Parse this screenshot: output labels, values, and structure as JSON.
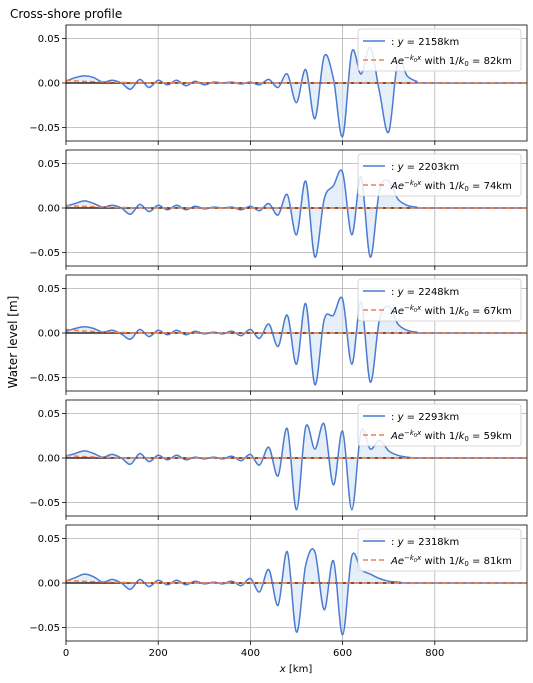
{
  "figure": {
    "title": "Cross-shore profile",
    "ylabel": "Water level [m]",
    "xlabel_var": "x",
    "xlabel_unit": " [km]"
  },
  "colors": {
    "signal": "#4a7bd0",
    "fill": "#d6e4f5",
    "decay": "#ee8050",
    "zero_line": "#000000",
    "grid": "#b0b0b0"
  },
  "chart_data": [
    {
      "type": "line",
      "y_km": "2158",
      "inv_k0_km": "82",
      "legend_signal": ": y = 2158km",
      "legend_decay": "Ae^{-k0 x} with 1/k0 = 82km",
      "xlim": [
        0,
        1000
      ],
      "ylim": [
        -0.065,
        0.065
      ],
      "xticks": [
        0,
        200,
        400,
        600,
        800
      ],
      "yticks": [
        -0.05,
        0.0,
        0.05
      ],
      "ytick_labels": [
        "−0.05",
        "0.00",
        "0.05"
      ],
      "grid": true,
      "legend_loc": "upper right",
      "decay_amplitude": 0.003,
      "x": [
        0,
        20,
        40,
        60,
        80,
        100,
        120,
        140,
        160,
        180,
        200,
        220,
        240,
        260,
        280,
        300,
        320,
        340,
        360,
        380,
        400,
        420,
        440,
        460,
        480,
        500,
        520,
        540,
        560,
        580,
        600,
        620,
        640,
        660,
        680,
        700,
        720,
        740,
        760,
        780
      ],
      "y": [
        0.002,
        0.006,
        0.008,
        0.006,
        0.001,
        0.003,
        0.0,
        -0.007,
        0.004,
        -0.005,
        0.003,
        -0.002,
        0.003,
        -0.003,
        0.002,
        -0.002,
        0.001,
        0.0,
        0.001,
        -0.001,
        0.001,
        -0.002,
        0.004,
        -0.005,
        0.01,
        -0.022,
        0.015,
        -0.04,
        0.03,
        0.005,
        -0.06,
        0.035,
        0.01,
        0.04,
        -0.01,
        -0.055,
        0.025,
        0.008,
        0.002,
        0.0
      ]
    },
    {
      "type": "line",
      "y_km": "2203",
      "inv_k0_km": "74",
      "legend_signal": ": y = 2203km",
      "legend_decay": "Ae^{-k0 x} with 1/k0 = 74km",
      "xlim": [
        0,
        1000
      ],
      "ylim": [
        -0.065,
        0.065
      ],
      "xticks": [
        0,
        200,
        400,
        600,
        800
      ],
      "yticks": [
        -0.05,
        0.0,
        0.05
      ],
      "ytick_labels": [
        "−0.05",
        "0.00",
        "0.05"
      ],
      "grid": true,
      "legend_loc": "upper right",
      "decay_amplitude": 0.003,
      "x": [
        0,
        20,
        40,
        60,
        80,
        100,
        120,
        140,
        160,
        180,
        200,
        220,
        240,
        260,
        280,
        300,
        320,
        340,
        360,
        380,
        400,
        420,
        440,
        460,
        480,
        500,
        520,
        540,
        560,
        580,
        600,
        620,
        640,
        660,
        680,
        700,
        720,
        740,
        760,
        780
      ],
      "y": [
        0.002,
        0.005,
        0.008,
        0.005,
        0.001,
        0.003,
        0.0,
        -0.007,
        0.004,
        -0.004,
        0.003,
        -0.002,
        0.003,
        -0.002,
        0.002,
        -0.001,
        0.001,
        0.0,
        0.001,
        -0.002,
        0.002,
        -0.003,
        0.005,
        -0.008,
        0.015,
        -0.03,
        0.03,
        -0.055,
        0.01,
        0.025,
        0.04,
        -0.03,
        0.035,
        -0.055,
        0.02,
        0.03,
        0.01,
        0.003,
        0.001,
        0.0
      ]
    },
    {
      "type": "line",
      "y_km": "2248",
      "inv_k0_km": "67",
      "legend_signal": ": y = 2248km",
      "legend_decay": "Ae^{-k0 x} with 1/k0 = 67km",
      "xlim": [
        0,
        1000
      ],
      "ylim": [
        -0.065,
        0.065
      ],
      "xticks": [
        0,
        200,
        400,
        600,
        800
      ],
      "yticks": [
        -0.05,
        0.0,
        0.05
      ],
      "ytick_labels": [
        "−0.05",
        "0.00",
        "0.05"
      ],
      "grid": true,
      "legend_loc": "upper right",
      "decay_amplitude": 0.004,
      "x": [
        0,
        20,
        40,
        60,
        80,
        100,
        120,
        140,
        160,
        180,
        200,
        220,
        240,
        260,
        280,
        300,
        320,
        340,
        360,
        380,
        400,
        420,
        440,
        460,
        480,
        500,
        520,
        540,
        560,
        580,
        600,
        620,
        640,
        660,
        680,
        700,
        720,
        740,
        760,
        780
      ],
      "y": [
        0.002,
        0.005,
        0.007,
        0.005,
        0.001,
        0.003,
        -0.001,
        -0.007,
        0.004,
        -0.004,
        0.003,
        -0.002,
        0.003,
        -0.002,
        0.002,
        -0.001,
        0.001,
        -0.001,
        0.002,
        -0.003,
        0.004,
        -0.006,
        0.01,
        -0.015,
        0.02,
        -0.035,
        0.033,
        -0.058,
        0.015,
        0.02,
        0.038,
        -0.035,
        0.035,
        -0.055,
        0.015,
        0.03,
        0.01,
        0.003,
        0.001,
        0.0
      ]
    },
    {
      "type": "line",
      "y_km": "2293",
      "inv_k0_km": "59",
      "legend_signal": ": y = 2293km",
      "legend_decay": "Ae^{-k0 x} with 1/k0 = 59km",
      "xlim": [
        0,
        1000
      ],
      "ylim": [
        -0.065,
        0.065
      ],
      "xticks": [
        0,
        200,
        400,
        600,
        800
      ],
      "yticks": [
        -0.05,
        0.0,
        0.05
      ],
      "ytick_labels": [
        "−0.05",
        "0.00",
        "0.05"
      ],
      "grid": true,
      "legend_loc": "upper right",
      "decay_amplitude": 0.003,
      "x": [
        0,
        20,
        40,
        60,
        80,
        100,
        120,
        140,
        160,
        180,
        200,
        220,
        240,
        260,
        280,
        300,
        320,
        340,
        360,
        380,
        400,
        420,
        440,
        460,
        480,
        500,
        520,
        540,
        560,
        580,
        600,
        620,
        640,
        660,
        680,
        700,
        720,
        740,
        760,
        780
      ],
      "y": [
        0.002,
        0.005,
        0.008,
        0.005,
        0.001,
        0.004,
        0.0,
        -0.007,
        0.005,
        -0.004,
        0.003,
        -0.002,
        0.003,
        -0.002,
        0.001,
        -0.001,
        0.001,
        -0.001,
        0.002,
        -0.003,
        0.004,
        -0.008,
        0.012,
        -0.02,
        0.033,
        -0.058,
        0.035,
        0.01,
        0.038,
        -0.03,
        0.03,
        -0.058,
        0.03,
        0.01,
        0.02,
        0.008,
        0.003,
        0.001,
        0.0,
        0.0
      ]
    },
    {
      "type": "line",
      "y_km": "2318",
      "inv_k0_km": "81",
      "legend_signal": ": y = 2318km",
      "legend_decay": "Ae^{-k0 x} with 1/k0 = 81km",
      "xlim": [
        0,
        1000
      ],
      "ylim": [
        -0.065,
        0.065
      ],
      "xticks": [
        0,
        200,
        400,
        600,
        800
      ],
      "yticks": [
        -0.05,
        0.0,
        0.05
      ],
      "ytick_labels": [
        "−0.05",
        "0.00",
        "0.05"
      ],
      "grid": true,
      "legend_loc": "upper right",
      "decay_amplitude": 0.003,
      "x": [
        0,
        20,
        40,
        60,
        80,
        100,
        120,
        140,
        160,
        180,
        200,
        220,
        240,
        260,
        280,
        300,
        320,
        340,
        360,
        380,
        400,
        420,
        440,
        460,
        480,
        500,
        520,
        540,
        560,
        580,
        600,
        620,
        640,
        660,
        680,
        700,
        720,
        740,
        760,
        780
      ],
      "y": [
        0.002,
        0.006,
        0.01,
        0.007,
        0.001,
        0.004,
        0.0,
        -0.007,
        0.004,
        -0.004,
        0.003,
        -0.002,
        0.003,
        -0.002,
        0.002,
        -0.001,
        0.001,
        -0.001,
        0.002,
        -0.003,
        0.005,
        -0.01,
        0.015,
        -0.025,
        0.035,
        -0.055,
        0.02,
        0.035,
        -0.03,
        0.025,
        -0.058,
        0.03,
        0.015,
        0.01,
        0.005,
        0.002,
        0.001,
        0.0,
        0.0,
        0.0
      ]
    }
  ]
}
